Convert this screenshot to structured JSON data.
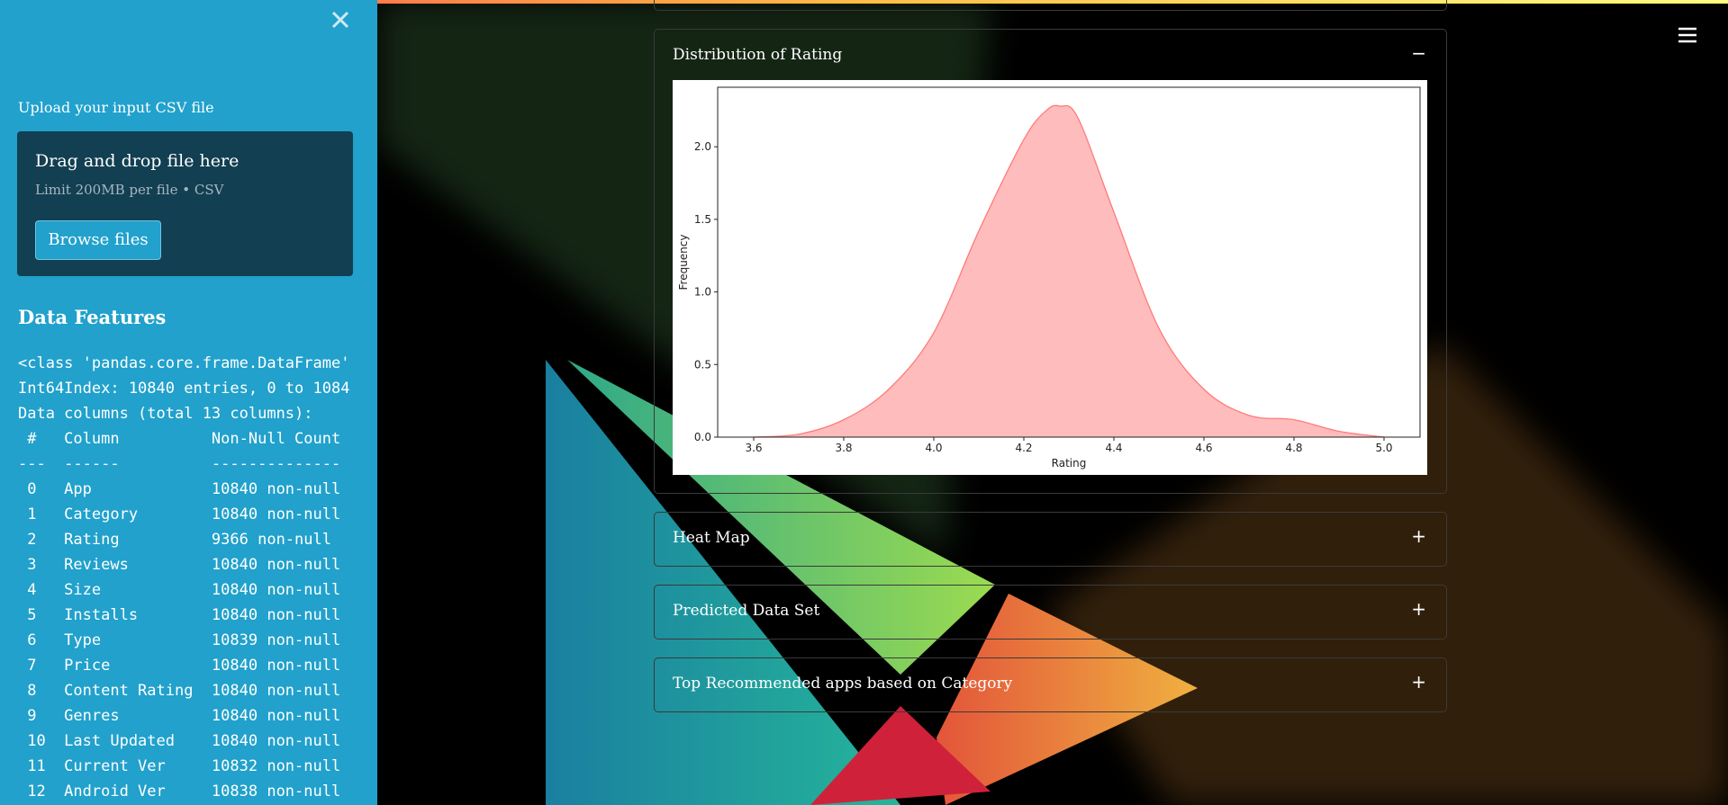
{
  "sidebar": {
    "upload_label": "Upload your input CSV file",
    "dropzone_title": "Drag and drop file here",
    "dropzone_limit": "Limit 200MB per file • CSV",
    "browse_button": "Browse files",
    "features_heading": "Data Features",
    "info_lines": [
      "<class 'pandas.core.frame.DataFrame'",
      "Int64Index: 10840 entries, 0 to 1084",
      "Data columns (total 13 columns):",
      " #   Column          Non-Null Count",
      "---  ------          --------------",
      " 0   App             10840 non-null",
      " 1   Category        10840 non-null",
      " 2   Rating          9366 non-null",
      " 3   Reviews         10840 non-null",
      " 4   Size            10840 non-null",
      " 5   Installs        10840 non-null",
      " 6   Type            10839 non-null",
      " 7   Price           10840 non-null",
      " 8   Content Rating  10840 non-null",
      " 9   Genres          10840 non-null",
      " 10  Last Updated    10840 non-null",
      " 11  Current Ver     10832 non-null",
      " 12  Android Ver     10838 non-null"
    ]
  },
  "expanders": [
    {
      "title": "Distribution of Rating",
      "toggle": "−"
    },
    {
      "title": "Heat Map",
      "toggle": "+"
    },
    {
      "title": "Predicted Data Set",
      "toggle": "+"
    },
    {
      "title": "Top Recommended apps based on Category",
      "toggle": "+"
    }
  ],
  "chart_data": {
    "type": "area",
    "xlabel": "Rating",
    "ylabel": "Frequency",
    "x": [
      3.6,
      3.7,
      3.8,
      3.9,
      4.0,
      4.1,
      4.2,
      4.25,
      4.28,
      4.32,
      4.4,
      4.5,
      4.6,
      4.7,
      4.8,
      4.9,
      5.0
    ],
    "values": [
      0.0,
      0.02,
      0.12,
      0.33,
      0.72,
      1.42,
      2.05,
      2.25,
      2.28,
      2.2,
      1.55,
      0.75,
      0.33,
      0.15,
      0.12,
      0.04,
      0.0
    ],
    "color": "#ff7b7b",
    "fill": "#ffbcbc",
    "xlim": [
      3.52,
      5.08
    ],
    "ylim": [
      0,
      2.41
    ],
    "xticks": [
      3.6,
      3.8,
      {
        "value": 4,
        "label": "4.0"
      },
      4.2,
      4.4,
      4.6,
      4.8,
      {
        "value": 5,
        "label": "5.0"
      }
    ],
    "yticks": [
      {
        "value": 0,
        "label": "0.0"
      },
      0.5,
      {
        "value": 1,
        "label": "1.0"
      },
      1.5,
      {
        "value": 2,
        "label": "2.0"
      }
    ]
  }
}
